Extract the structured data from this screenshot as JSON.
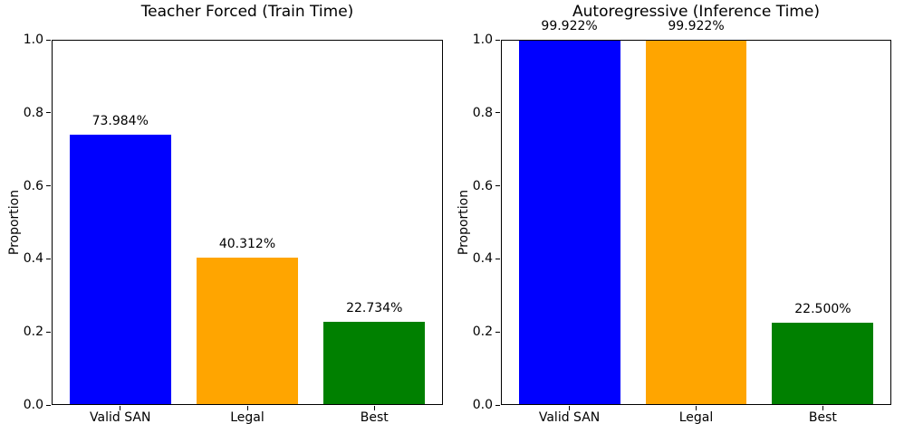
{
  "figure": {
    "background": "#ffffff",
    "text_color": "#000000"
  },
  "chart_data": [
    {
      "type": "bar",
      "title": "Teacher Forced (Train Time)",
      "xlabel": "",
      "ylabel": "Proportion",
      "categories": [
        "Valid SAN",
        "Legal",
        "Best"
      ],
      "values": [
        0.73984,
        0.40312,
        0.22734
      ],
      "bar_labels": [
        "73.984%",
        "40.312%",
        "22.734%"
      ],
      "colors": [
        "#0000ff",
        "#ffa500",
        "#008000"
      ],
      "ylim": [
        0.0,
        1.0
      ],
      "xlim": [
        -0.54,
        2.54
      ],
      "bar_width": 0.8,
      "yticks": [
        0.0,
        0.2,
        0.4,
        0.6,
        0.8,
        1.0
      ],
      "ytick_labels": [
        "0.0",
        "0.2",
        "0.4",
        "0.6",
        "0.8",
        "1.0"
      ],
      "grid": false,
      "legend": "none"
    },
    {
      "type": "bar",
      "title": "Autoregressive (Inference Time)",
      "xlabel": "",
      "ylabel": "Proportion",
      "categories": [
        "Valid SAN",
        "Legal",
        "Best"
      ],
      "values": [
        0.99922,
        0.99922,
        0.225
      ],
      "bar_labels": [
        "99.922%",
        "99.922%",
        "22.500%"
      ],
      "colors": [
        "#0000ff",
        "#ffa500",
        "#008000"
      ],
      "ylim": [
        0.0,
        1.0
      ],
      "xlim": [
        -0.54,
        2.54
      ],
      "bar_width": 0.8,
      "yticks": [
        0.0,
        0.2,
        0.4,
        0.6,
        0.8,
        1.0
      ],
      "ytick_labels": [
        "0.0",
        "0.2",
        "0.4",
        "0.6",
        "0.8",
        "1.0"
      ],
      "grid": false,
      "legend": "none"
    }
  ]
}
